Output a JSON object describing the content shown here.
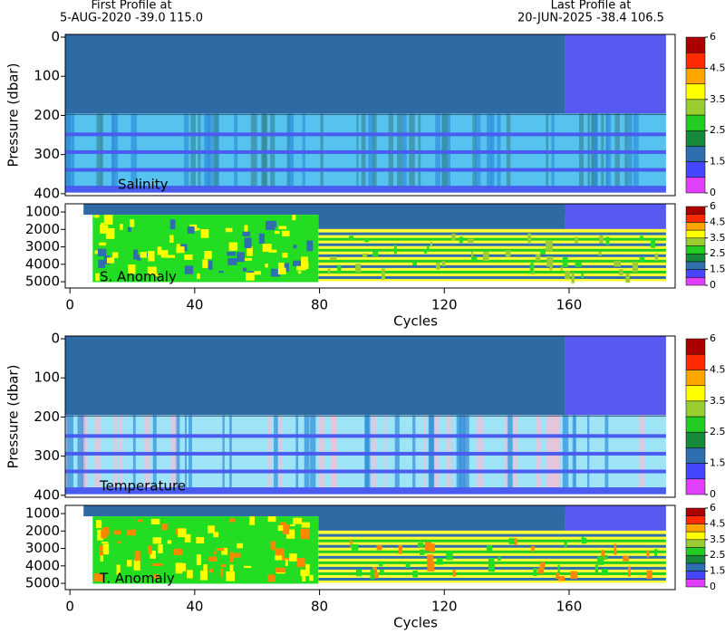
{
  "chart_data": [
    {
      "type": "heatmap",
      "label": "Salinity",
      "ylabel": "Pressure (dbar)",
      "annotations": [
        "First Profile at",
        "5-AUG-2020   -39.0  115.0",
        "Last Profile at",
        "20-JUN-2025   -38.4  106.5"
      ],
      "xlim": [
        -1.5,
        194
      ],
      "ylim": [
        405,
        -7
      ],
      "yticks": [
        0,
        100,
        200,
        300,
        400
      ],
      "colorbar": {
        "levels": [
          0,
          1,
          1.5,
          2,
          2.5,
          3,
          3.5,
          4,
          4.5,
          5,
          6
        ],
        "colors": [
          "#e040fb",
          "#4646ff",
          "#2f6fb0",
          "#168a3a",
          "#22cc22",
          "#9acd32",
          "#ffff00",
          "#ffa500",
          "#ff2a00",
          "#aa0000"
        ],
        "ticks": [
          0,
          1.5,
          2.5,
          3.5,
          4.5,
          6
        ]
      }
    },
    {
      "type": "heatmap",
      "label": "S. Anomaly",
      "xlabel": "Cycles",
      "xlim": [
        -1.5,
        194
      ],
      "xticks": [
        0,
        40,
        80,
        120,
        160
      ],
      "ylim": [
        5360,
        530
      ],
      "yticks": [
        1000,
        2000,
        3000,
        4000,
        5000
      ],
      "colorbar": {
        "levels": [
          0,
          1,
          1.5,
          2,
          2.5,
          3,
          3.5,
          4,
          4.5,
          5,
          6
        ],
        "colors": [
          "#e040fb",
          "#4646ff",
          "#2f6fb0",
          "#168a3a",
          "#22cc22",
          "#9acd32",
          "#ffff00",
          "#ffa500",
          "#ff2a00",
          "#aa0000"
        ],
        "ticks": [
          0,
          1.5,
          2.5,
          3.5,
          4.5,
          6
        ]
      }
    },
    {
      "type": "heatmap",
      "label": "Temperature",
      "ylabel": "Pressure (dbar)",
      "xlim": [
        -1.5,
        194
      ],
      "ylim": [
        405,
        -7
      ],
      "yticks": [
        0,
        100,
        200,
        300,
        400
      ],
      "colorbar": {
        "levels": [
          0,
          1,
          1.5,
          2,
          2.5,
          3,
          3.5,
          4,
          4.5,
          5,
          6
        ],
        "colors": [
          "#e040fb",
          "#4646ff",
          "#2f6fb0",
          "#168a3a",
          "#22cc22",
          "#9acd32",
          "#ffff00",
          "#ffa500",
          "#ff2a00",
          "#aa0000"
        ],
        "ticks": [
          0,
          1.5,
          2.5,
          3.5,
          4.5,
          6
        ]
      }
    },
    {
      "type": "heatmap",
      "label": "T. Anomaly",
      "xlabel": "Cycles",
      "xlim": [
        -1.5,
        194
      ],
      "xticks": [
        0,
        40,
        80,
        120,
        160
      ],
      "ylim": [
        5360,
        530
      ],
      "yticks": [
        1000,
        2000,
        3000,
        4000,
        5000
      ],
      "colorbar": {
        "levels": [
          0,
          1,
          1.5,
          2,
          2.5,
          3,
          3.5,
          4,
          4.5,
          5,
          6
        ],
        "colors": [
          "#e040fb",
          "#4646ff",
          "#2f6fb0",
          "#168a3a",
          "#22cc22",
          "#9acd32",
          "#ffff00",
          "#ffa500",
          "#ff2a00",
          "#aa0000"
        ],
        "ticks": [
          0,
          1.5,
          2.5,
          3.5,
          4.5,
          6
        ]
      }
    }
  ]
}
